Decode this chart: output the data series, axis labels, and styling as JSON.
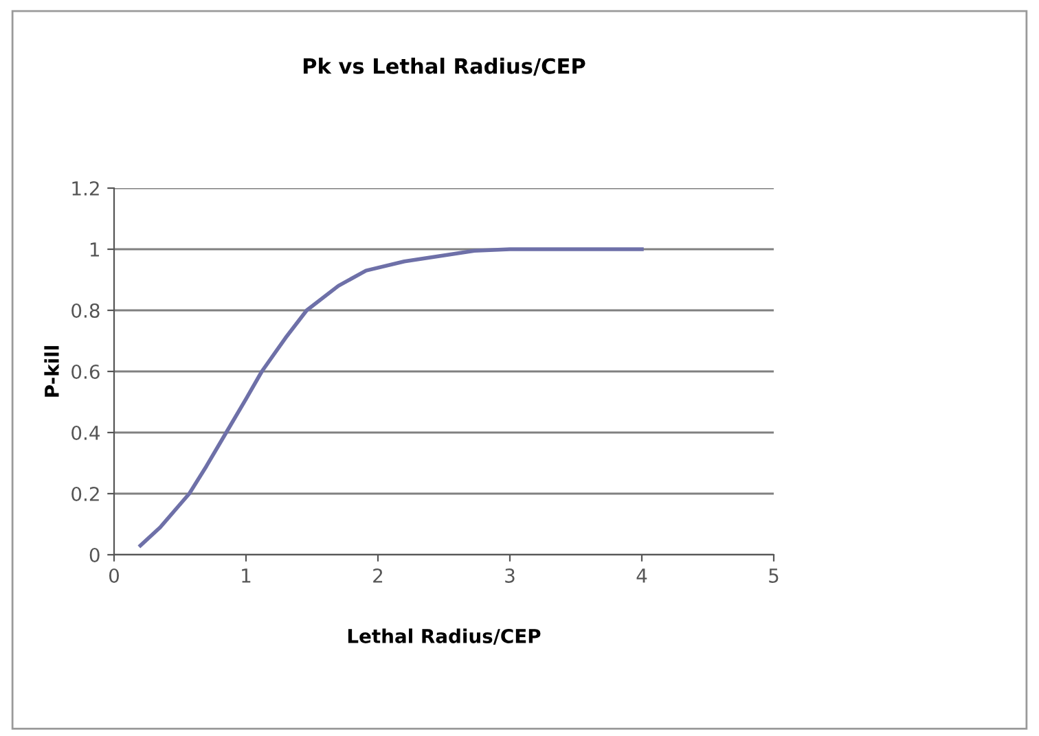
{
  "chart_data": {
    "type": "line",
    "title": "Pk vs Lethal Radius/CEP",
    "xlabel": "Lethal Radius/CEP",
    "ylabel": "P-kill",
    "series": [
      {
        "color": "#6e70a8",
        "x": [
          0.2,
          0.35,
          0.47,
          0.57,
          0.7,
          0.85,
          1.0,
          1.12,
          1.3,
          1.46,
          1.7,
          1.91,
          2.2,
          2.5,
          2.73,
          3.0,
          3.3,
          3.6,
          4.0
        ],
        "values": [
          0.03,
          0.09,
          0.15,
          0.2,
          0.29,
          0.4,
          0.51,
          0.6,
          0.71,
          0.8,
          0.88,
          0.93,
          0.96,
          0.98,
          0.995,
          1.0,
          1.0,
          1.0,
          1.0
        ]
      }
    ],
    "xlim": [
      0,
      5
    ],
    "xticks": [
      0,
      1,
      2,
      3,
      4,
      5
    ],
    "ylim": [
      0,
      1.2
    ],
    "yticks": [
      0,
      0.2,
      0.4,
      0.6,
      0.8,
      1,
      1.2
    ],
    "grid": "y",
    "marker": "none",
    "line_style": "solid"
  }
}
